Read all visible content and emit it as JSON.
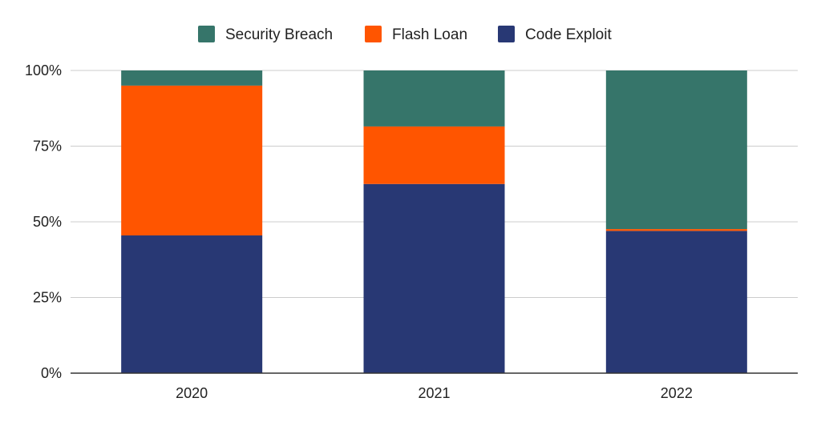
{
  "chart_data": {
    "type": "bar",
    "stacked": true,
    "normalized": true,
    "categories": [
      "2020",
      "2021",
      "2022"
    ],
    "series": [
      {
        "name": "Code Exploit",
        "color": "#283874",
        "values": [
          45.5,
          62.5,
          47.0
        ]
      },
      {
        "name": "Flash Loan",
        "color": "#FF5500",
        "values": [
          49.5,
          19.0,
          0.6
        ]
      },
      {
        "name": "Security Breach",
        "color": "#36756A",
        "values": [
          5.0,
          18.5,
          52.4
        ]
      }
    ],
    "legend_order": [
      "Security Breach",
      "Flash Loan",
      "Code Exploit"
    ],
    "legend_position": "top",
    "ylim": [
      0,
      100
    ],
    "yticks": [
      0,
      25,
      50,
      75,
      100
    ],
    "ytick_labels": [
      "0%",
      "25%",
      "50%",
      "75%",
      "100%"
    ],
    "grid": true,
    "title": "",
    "xlabel": "",
    "ylabel": ""
  }
}
